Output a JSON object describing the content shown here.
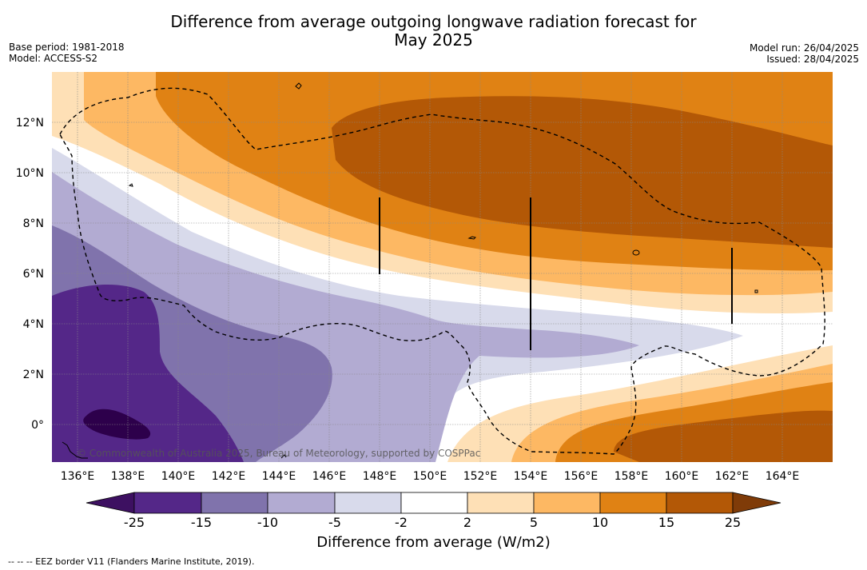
{
  "title_line1": "Difference from average outgoing longwave radiation forecast for",
  "title_line2": "May 2025",
  "base_period": "Base period: 1981-2018",
  "model": "Model: ACCESS-S2",
  "model_run": "Model run: 26/04/2025",
  "issued": "Issued: 28/04/2025",
  "map": {
    "lon_ticks": [
      "136°E",
      "138°E",
      "140°E",
      "142°E",
      "144°E",
      "146°E",
      "148°E",
      "150°E",
      "152°E",
      "154°E",
      "156°E",
      "158°E",
      "160°E",
      "162°E",
      "164°E"
    ],
    "lat_ticks": [
      "12°N",
      "10°N",
      "8°N",
      "6°N",
      "4°N",
      "2°N",
      "0°"
    ],
    "copyright": "© Commonwealth of Australia 2025, Bureau of Meteorology, supported by COSPPac"
  },
  "colorbar": {
    "title": "Difference from average (W/m2)",
    "labels": [
      "-25",
      "-15",
      "-10",
      "-5",
      "-2",
      "2",
      "5",
      "10",
      "15",
      "25"
    ],
    "colors": [
      "#3d1061",
      "#542788",
      "#8073ac",
      "#b2abd2",
      "#d8daeb",
      "#ffffff",
      "#fee0b6",
      "#fdb863",
      "#e08214",
      "#b35806",
      "#7f3b08"
    ]
  },
  "footer": "--  --  -- EEZ border V11 (Flanders Marine Institute, 2019)."
}
